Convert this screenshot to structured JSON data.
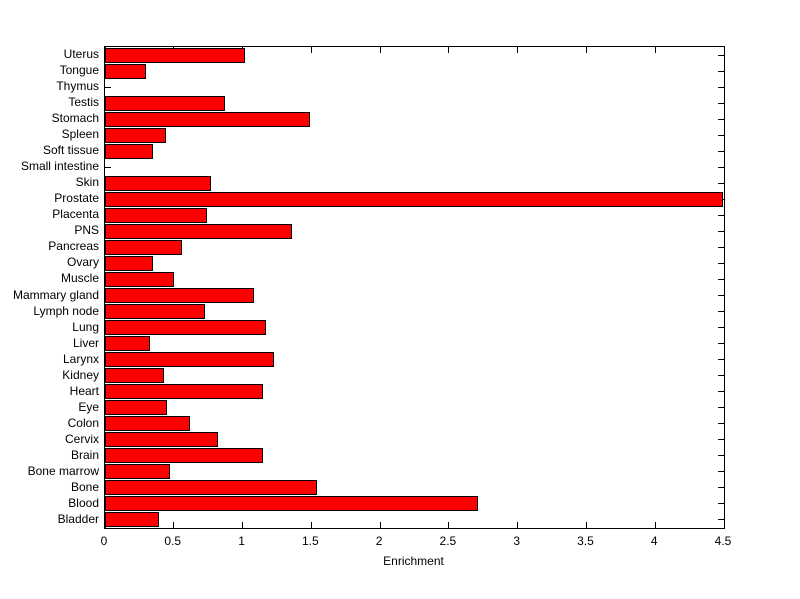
{
  "figure": {
    "background": "#ffffff",
    "bar_color": "#ff0000",
    "bar_edge_color": "#000000",
    "axis_color": "#000000",
    "text_color": "#000000"
  },
  "chart_data": {
    "type": "bar",
    "orientation": "horizontal",
    "title": "",
    "xlabel": "Enrichment",
    "ylabel": "",
    "xlim": [
      0,
      4.5
    ],
    "xticks": [
      0,
      0.5,
      1,
      1.5,
      2,
      2.5,
      3,
      3.5,
      4,
      4.5
    ],
    "xtick_labels": [
      "0",
      "0.5",
      "1",
      "1.5",
      "2",
      "2.5",
      "3",
      "3.5",
      "4",
      "4.5"
    ],
    "grid": false,
    "legend": null,
    "category_order": "top-to-bottom",
    "categories": [
      "Uterus",
      "Tongue",
      "Thymus",
      "Testis",
      "Stomach",
      "Spleen",
      "Soft tissue",
      "Small intestine",
      "Skin",
      "Prostate",
      "Placenta",
      "PNS",
      "Pancreas",
      "Ovary",
      "Muscle",
      "Mammary gland",
      "Lymph node",
      "Lung",
      "Liver",
      "Larynx",
      "Kidney",
      "Heart",
      "Eye",
      "Colon",
      "Cervix",
      "Brain",
      "Bone marrow",
      "Bone",
      "Blood",
      "Bladder"
    ],
    "values": [
      1.02,
      0.3,
      0.0,
      0.87,
      1.49,
      0.44,
      0.35,
      0.0,
      0.77,
      4.49,
      0.74,
      1.36,
      0.56,
      0.35,
      0.5,
      1.08,
      0.73,
      1.17,
      0.33,
      1.23,
      0.43,
      1.15,
      0.45,
      0.62,
      0.82,
      1.15,
      0.47,
      1.54,
      2.71,
      0.39
    ]
  }
}
